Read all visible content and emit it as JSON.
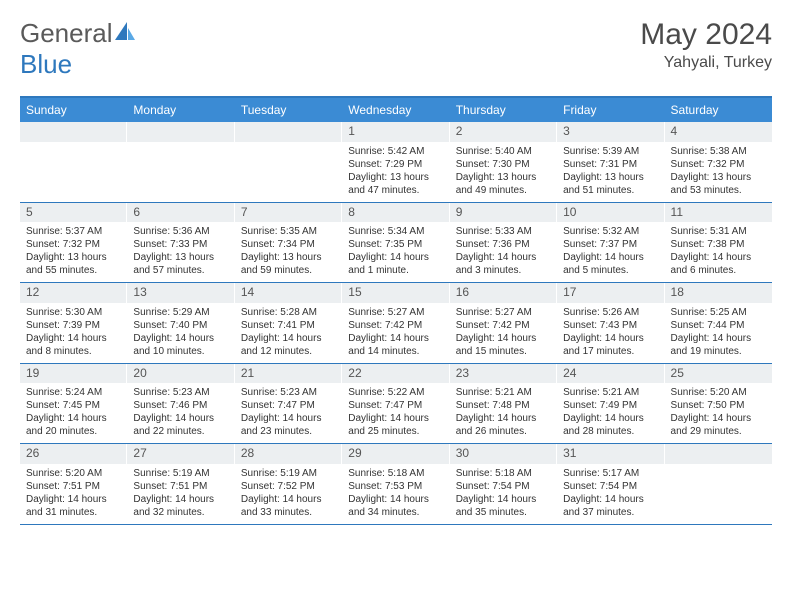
{
  "brand": {
    "part1": "General",
    "part2": "Blue"
  },
  "title": "May 2024",
  "location": "Yahyali, Turkey",
  "colors": {
    "header_bg": "#3b8bd4",
    "border": "#2e78bd",
    "daynum_bg": "#eceff1",
    "text": "#333333",
    "logo_gray": "#5a5a5a",
    "logo_blue": "#2e78bd"
  },
  "days_of_week": [
    "Sunday",
    "Monday",
    "Tuesday",
    "Wednesday",
    "Thursday",
    "Friday",
    "Saturday"
  ],
  "weeks": [
    [
      null,
      null,
      null,
      {
        "n": "1",
        "sr": "5:42 AM",
        "ss": "7:29 PM",
        "dl": "13 hours and 47 minutes."
      },
      {
        "n": "2",
        "sr": "5:40 AM",
        "ss": "7:30 PM",
        "dl": "13 hours and 49 minutes."
      },
      {
        "n": "3",
        "sr": "5:39 AM",
        "ss": "7:31 PM",
        "dl": "13 hours and 51 minutes."
      },
      {
        "n": "4",
        "sr": "5:38 AM",
        "ss": "7:32 PM",
        "dl": "13 hours and 53 minutes."
      }
    ],
    [
      {
        "n": "5",
        "sr": "5:37 AM",
        "ss": "7:32 PM",
        "dl": "13 hours and 55 minutes."
      },
      {
        "n": "6",
        "sr": "5:36 AM",
        "ss": "7:33 PM",
        "dl": "13 hours and 57 minutes."
      },
      {
        "n": "7",
        "sr": "5:35 AM",
        "ss": "7:34 PM",
        "dl": "13 hours and 59 minutes."
      },
      {
        "n": "8",
        "sr": "5:34 AM",
        "ss": "7:35 PM",
        "dl": "14 hours and 1 minute."
      },
      {
        "n": "9",
        "sr": "5:33 AM",
        "ss": "7:36 PM",
        "dl": "14 hours and 3 minutes."
      },
      {
        "n": "10",
        "sr": "5:32 AM",
        "ss": "7:37 PM",
        "dl": "14 hours and 5 minutes."
      },
      {
        "n": "11",
        "sr": "5:31 AM",
        "ss": "7:38 PM",
        "dl": "14 hours and 6 minutes."
      }
    ],
    [
      {
        "n": "12",
        "sr": "5:30 AM",
        "ss": "7:39 PM",
        "dl": "14 hours and 8 minutes."
      },
      {
        "n": "13",
        "sr": "5:29 AM",
        "ss": "7:40 PM",
        "dl": "14 hours and 10 minutes."
      },
      {
        "n": "14",
        "sr": "5:28 AM",
        "ss": "7:41 PM",
        "dl": "14 hours and 12 minutes."
      },
      {
        "n": "15",
        "sr": "5:27 AM",
        "ss": "7:42 PM",
        "dl": "14 hours and 14 minutes."
      },
      {
        "n": "16",
        "sr": "5:27 AM",
        "ss": "7:42 PM",
        "dl": "14 hours and 15 minutes."
      },
      {
        "n": "17",
        "sr": "5:26 AM",
        "ss": "7:43 PM",
        "dl": "14 hours and 17 minutes."
      },
      {
        "n": "18",
        "sr": "5:25 AM",
        "ss": "7:44 PM",
        "dl": "14 hours and 19 minutes."
      }
    ],
    [
      {
        "n": "19",
        "sr": "5:24 AM",
        "ss": "7:45 PM",
        "dl": "14 hours and 20 minutes."
      },
      {
        "n": "20",
        "sr": "5:23 AM",
        "ss": "7:46 PM",
        "dl": "14 hours and 22 minutes."
      },
      {
        "n": "21",
        "sr": "5:23 AM",
        "ss": "7:47 PM",
        "dl": "14 hours and 23 minutes."
      },
      {
        "n": "22",
        "sr": "5:22 AM",
        "ss": "7:47 PM",
        "dl": "14 hours and 25 minutes."
      },
      {
        "n": "23",
        "sr": "5:21 AM",
        "ss": "7:48 PM",
        "dl": "14 hours and 26 minutes."
      },
      {
        "n": "24",
        "sr": "5:21 AM",
        "ss": "7:49 PM",
        "dl": "14 hours and 28 minutes."
      },
      {
        "n": "25",
        "sr": "5:20 AM",
        "ss": "7:50 PM",
        "dl": "14 hours and 29 minutes."
      }
    ],
    [
      {
        "n": "26",
        "sr": "5:20 AM",
        "ss": "7:51 PM",
        "dl": "14 hours and 31 minutes."
      },
      {
        "n": "27",
        "sr": "5:19 AM",
        "ss": "7:51 PM",
        "dl": "14 hours and 32 minutes."
      },
      {
        "n": "28",
        "sr": "5:19 AM",
        "ss": "7:52 PM",
        "dl": "14 hours and 33 minutes."
      },
      {
        "n": "29",
        "sr": "5:18 AM",
        "ss": "7:53 PM",
        "dl": "14 hours and 34 minutes."
      },
      {
        "n": "30",
        "sr": "5:18 AM",
        "ss": "7:54 PM",
        "dl": "14 hours and 35 minutes."
      },
      {
        "n": "31",
        "sr": "5:17 AM",
        "ss": "7:54 PM",
        "dl": "14 hours and 37 minutes."
      },
      null
    ]
  ],
  "labels": {
    "sunrise": "Sunrise:",
    "sunset": "Sunset:",
    "daylight": "Daylight:"
  }
}
